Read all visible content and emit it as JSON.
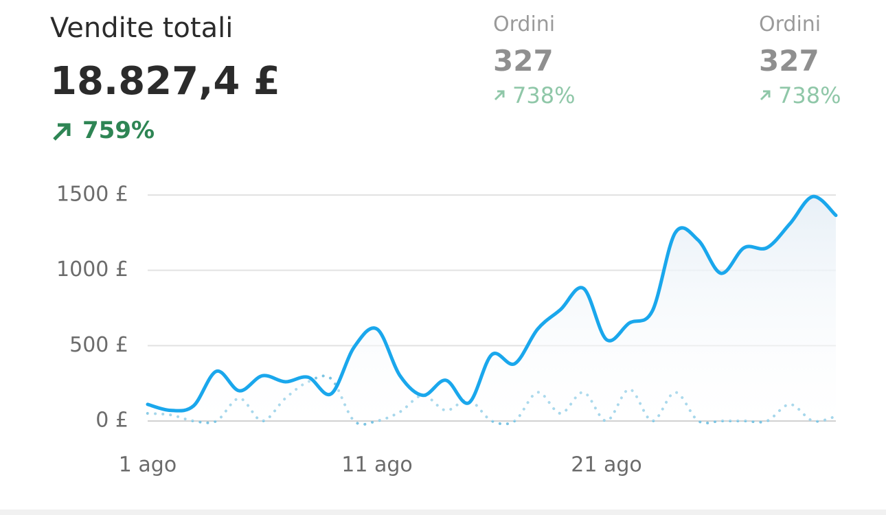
{
  "header": {
    "title": "Vendite totali",
    "total": "18.827,4 £",
    "change": "759%"
  },
  "stats": [
    {
      "label": "Ordini",
      "value": "327",
      "change": "738%"
    },
    {
      "label": "Ordini",
      "value": "327",
      "change": "738%"
    }
  ],
  "chart_data": {
    "type": "line",
    "categories": [
      "1 ago",
      null,
      null,
      null,
      null,
      null,
      null,
      null,
      null,
      null,
      "11 ago",
      null,
      null,
      null,
      null,
      null,
      null,
      null,
      null,
      null,
      "21 ago",
      null,
      null,
      null,
      null,
      null,
      null,
      null,
      null,
      null,
      null
    ],
    "series": [
      {
        "color": "#1aa7ec",
        "style": "solid",
        "area": true,
        "values": [
          110,
          70,
          100,
          330,
          200,
          300,
          260,
          290,
          180,
          490,
          610,
          300,
          170,
          270,
          120,
          440,
          380,
          610,
          740,
          880,
          540,
          650,
          730,
          1250,
          1200,
          980,
          1150,
          1150,
          1310,
          1490,
          1365
        ]
      },
      {
        "color": "#7cc4e2",
        "style": "dotted",
        "area": false,
        "values": [
          50,
          40,
          0,
          0,
          150,
          0,
          150,
          260,
          280,
          0,
          0,
          60,
          170,
          70,
          140,
          0,
          0,
          190,
          50,
          190,
          0,
          210,
          0,
          190,
          0,
          0,
          0,
          0,
          110,
          0,
          30
        ]
      }
    ],
    "ylim": [
      0,
      1500
    ],
    "yticks": [
      {
        "value": 0,
        "label": "0 £"
      },
      {
        "value": 500,
        "label": "500 £"
      },
      {
        "value": 1000,
        "label": "1000 £"
      },
      {
        "value": 1500,
        "label": "1500 £"
      }
    ],
    "grid": true
  }
}
